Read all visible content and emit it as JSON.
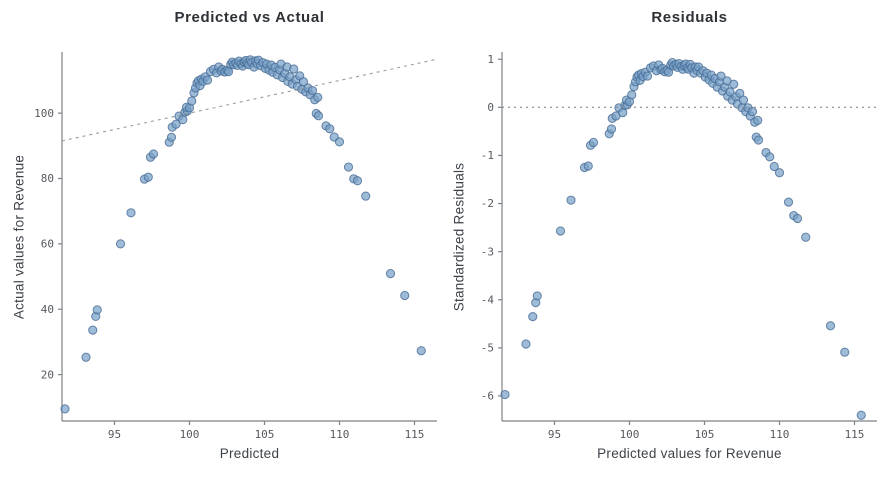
{
  "figure_style": {
    "background": "#ffffff",
    "point_fill": "#78a1c8",
    "point_edge": "#466a93",
    "ref_line_color": "#8e9297",
    "spine_color": "#7d8287",
    "tick_color": "#7d8287"
  },
  "chart_data": [
    {
      "type": "scatter",
      "title": "Predicted vs Actual",
      "xlabel": "Predicted",
      "ylabel": "Actual values for Revenue",
      "x_ticks": [
        95,
        100,
        105,
        110,
        115
      ],
      "y_ticks": [
        20,
        40,
        60,
        80,
        100
      ],
      "xlim": [
        91.5,
        116.5
      ],
      "ylim": [
        5.8,
        118.7
      ],
      "grid": false,
      "legend": "none",
      "ref_line": {
        "kind": "identity",
        "dash": "3 4",
        "note": "dashed y=x reference line"
      },
      "x_index": 0,
      "y_index": 1
    },
    {
      "type": "scatter",
      "title": "Residuals",
      "xlabel": "Predicted values for Revenue",
      "ylabel": "Standardized Residuals",
      "x_ticks": [
        95,
        100,
        105,
        110,
        115
      ],
      "y_ticks": [
        1,
        0,
        -1,
        -2,
        -3,
        -4,
        -5,
        -6
      ],
      "xlim": [
        91.5,
        116.5
      ],
      "ylim": [
        -6.52,
        1.15
      ],
      "grid": false,
      "legend": "none",
      "ref_line": {
        "kind": "hline",
        "y": 0,
        "dash": "2 4",
        "note": "dotted zero residual line"
      },
      "x_index": 0,
      "y_index": 2
    }
  ],
  "points_schema": [
    "predicted",
    "actual_revenue",
    "standardized_residual"
  ],
  "points": [
    [
      91.7,
      9.5,
      -5.97
    ],
    [
      93.1,
      25.3,
      -4.92
    ],
    [
      93.55,
      33.6,
      -4.35
    ],
    [
      93.75,
      37.8,
      -4.06
    ],
    [
      93.85,
      39.8,
      -3.92
    ],
    [
      95.4,
      60.0,
      -2.57
    ],
    [
      96.1,
      69.5,
      -1.93
    ],
    [
      97.0,
      79.8,
      -1.25
    ],
    [
      97.25,
      80.4,
      -1.22
    ],
    [
      97.4,
      86.5,
      -0.79
    ],
    [
      97.6,
      87.5,
      -0.73
    ],
    [
      98.65,
      91.1,
      -0.55
    ],
    [
      98.8,
      92.6,
      -0.45
    ],
    [
      98.85,
      95.7,
      -0.23
    ],
    [
      99.1,
      96.6,
      -0.18
    ],
    [
      99.3,
      99.1,
      -0.01
    ],
    [
      99.55,
      98.0,
      -0.11
    ],
    [
      99.7,
      100.3,
      0.04
    ],
    [
      99.85,
      100.6,
      0.05
    ],
    [
      99.8,
      101.8,
      0.15
    ],
    [
      100.0,
      101.6,
      0.12
    ],
    [
      100.15,
      103.7,
      0.26
    ],
    [
      100.3,
      106.2,
      0.43
    ],
    [
      100.4,
      107.7,
      0.53
    ],
    [
      100.5,
      109.2,
      0.63
    ],
    [
      100.6,
      109.9,
      0.67
    ],
    [
      100.7,
      108.4,
      0.56
    ],
    [
      100.8,
      110.4,
      0.7
    ],
    [
      100.9,
      109.7,
      0.64
    ],
    [
      101.05,
      111.1,
      0.73
    ],
    [
      101.2,
      110.1,
      0.65
    ],
    [
      101.4,
      112.7,
      0.82
    ],
    [
      101.6,
      113.4,
      0.86
    ],
    [
      101.8,
      112.3,
      0.76
    ],
    [
      101.95,
      114.1,
      0.88
    ],
    [
      102.1,
      112.9,
      0.78
    ],
    [
      102.2,
      113.4,
      0.81
    ],
    [
      102.35,
      112.6,
      0.74
    ],
    [
      102.5,
      113.1,
      0.77
    ],
    [
      102.6,
      112.7,
      0.73
    ],
    [
      102.75,
      114.9,
      0.88
    ],
    [
      102.85,
      115.6,
      0.93
    ],
    [
      102.95,
      114.8,
      0.86
    ],
    [
      103.1,
      115.3,
      0.89
    ],
    [
      103.2,
      114.6,
      0.83
    ],
    [
      103.3,
      115.9,
      0.91
    ],
    [
      103.45,
      115.1,
      0.85
    ],
    [
      103.55,
      114.4,
      0.79
    ],
    [
      103.65,
      115.6,
      0.87
    ],
    [
      103.75,
      116.1,
      0.9
    ],
    [
      103.85,
      115.2,
      0.82
    ],
    [
      103.95,
      114.8,
      0.79
    ],
    [
      104.05,
      116.3,
      0.89
    ],
    [
      104.15,
      115.5,
      0.82
    ],
    [
      104.3,
      114.1,
      0.71
    ],
    [
      104.4,
      116.0,
      0.84
    ],
    [
      104.5,
      115.1,
      0.77
    ],
    [
      104.6,
      116.2,
      0.84
    ],
    [
      104.75,
      114.5,
      0.71
    ],
    [
      104.9,
      115.4,
      0.76
    ],
    [
      105.05,
      113.7,
      0.63
    ],
    [
      105.15,
      115.0,
      0.71
    ],
    [
      105.3,
      113.2,
      0.57
    ],
    [
      105.45,
      114.7,
      0.67
    ],
    [
      105.55,
      112.5,
      0.5
    ],
    [
      105.7,
      114.0,
      0.6
    ],
    [
      105.85,
      111.7,
      0.42
    ],
    [
      106.0,
      113.3,
      0.53
    ],
    [
      106.1,
      115.0,
      0.65
    ],
    [
      106.2,
      110.9,
      0.34
    ],
    [
      106.35,
      112.2,
      0.42
    ],
    [
      106.5,
      114.1,
      0.55
    ],
    [
      106.55,
      109.7,
      0.23
    ],
    [
      106.7,
      111.1,
      0.32
    ],
    [
      106.85,
      108.9,
      0.15
    ],
    [
      106.95,
      113.5,
      0.48
    ],
    [
      107.1,
      110.2,
      0.22
    ],
    [
      107.2,
      108.2,
      0.07
    ],
    [
      107.35,
      111.4,
      0.29
    ],
    [
      107.5,
      107.3,
      -0.01
    ],
    [
      107.6,
      109.6,
      0.15
    ],
    [
      107.75,
      106.5,
      -0.09
    ],
    [
      107.9,
      107.7,
      -0.01
    ],
    [
      108.05,
      105.6,
      -0.18
    ],
    [
      108.2,
      106.9,
      -0.09
    ],
    [
      108.35,
      104.1,
      -0.31
    ],
    [
      108.55,
      104.8,
      -0.27
    ],
    [
      108.45,
      99.9,
      -0.62
    ],
    [
      108.6,
      99.2,
      -0.68
    ],
    [
      109.1,
      96.1,
      -0.94
    ],
    [
      109.35,
      95.2,
      -1.03
    ],
    [
      109.65,
      92.7,
      -1.23
    ],
    [
      110.0,
      91.2,
      -1.36
    ],
    [
      110.6,
      83.5,
      -1.97
    ],
    [
      110.95,
      79.9,
      -2.25
    ],
    [
      111.2,
      79.3,
      -2.31
    ],
    [
      111.75,
      74.6,
      -2.7
    ],
    [
      113.4,
      50.9,
      -4.54
    ],
    [
      114.35,
      44.2,
      -5.09
    ],
    [
      115.45,
      27.3,
      -6.4
    ]
  ]
}
